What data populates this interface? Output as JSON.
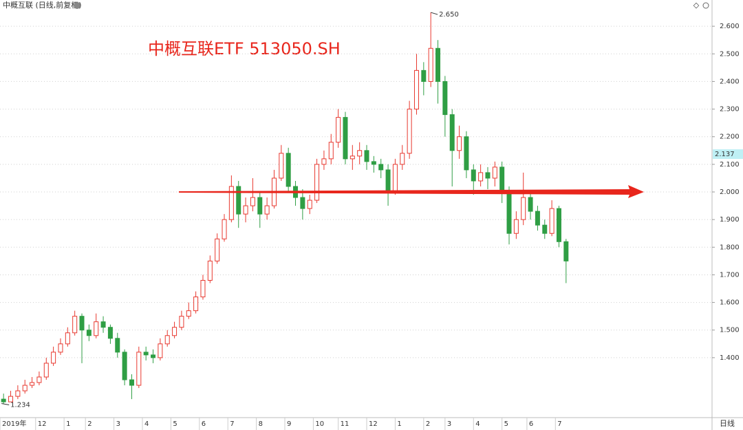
{
  "chart_data": {
    "type": "candlestick",
    "title": "中概互联 (日线,前复权)",
    "annotation": "中概互联ETF 513050.SH",
    "period_label": "日线",
    "high_label": "2.650",
    "low_label": "1.234",
    "cursor_price": 2.137,
    "reference_level": 2.0,
    "reference_color": "#e8261c",
    "up_color": "#e8372e",
    "down_color": "#2f9e44",
    "grid": true,
    "xlim": [
      0,
      100
    ],
    "xticks": [
      {
        "value": 0,
        "label": "2019年"
      },
      {
        "value": 5,
        "label": "12"
      },
      {
        "value": 9,
        "label": "1"
      },
      {
        "value": 12,
        "label": "2"
      },
      {
        "value": 16,
        "label": "3"
      },
      {
        "value": 20,
        "label": "4"
      },
      {
        "value": 24,
        "label": "5"
      },
      {
        "value": 28,
        "label": "6"
      },
      {
        "value": 32,
        "label": "7"
      },
      {
        "value": 36,
        "label": "8"
      },
      {
        "value": 40,
        "label": "9"
      },
      {
        "value": 44,
        "label": "10"
      },
      {
        "value": 47.5,
        "label": "11"
      },
      {
        "value": 51.5,
        "label": "12"
      },
      {
        "value": 55.5,
        "label": "1"
      },
      {
        "value": 59.5,
        "label": "2"
      },
      {
        "value": 62.5,
        "label": "3"
      },
      {
        "value": 66.5,
        "label": "4"
      },
      {
        "value": 70.5,
        "label": "5"
      },
      {
        "value": 74,
        "label": "6"
      },
      {
        "value": 78,
        "label": "7"
      }
    ],
    "ylim": [
      1.183,
      2.695
    ],
    "yticks": [
      {
        "value": 1.4,
        "label": "1.400"
      },
      {
        "value": 1.5,
        "label": "1.500"
      },
      {
        "value": 1.6,
        "label": "1.600"
      },
      {
        "value": 1.7,
        "label": "1.700"
      },
      {
        "value": 1.8,
        "label": "1.800"
      },
      {
        "value": 1.9,
        "label": "1.900"
      },
      {
        "value": 2.0,
        "label": "2.000"
      },
      {
        "value": 2.1,
        "label": "2.100"
      },
      {
        "value": 2.2,
        "label": "2.200"
      },
      {
        "value": 2.3,
        "label": "2.300"
      },
      {
        "value": 2.4,
        "label": "2.400"
      },
      {
        "value": 2.5,
        "label": "2.500"
      },
      {
        "value": 2.6,
        "label": "2.600"
      }
    ],
    "open": [
      1.25,
      1.24,
      1.26,
      1.28,
      1.3,
      1.31,
      1.33,
      1.38,
      1.42,
      1.45,
      1.49,
      1.55,
      1.5,
      1.48,
      1.53,
      1.51,
      1.47,
      1.42,
      1.32,
      1.3,
      1.42,
      1.41,
      1.4,
      1.45,
      1.48,
      1.51,
      1.55,
      1.57,
      1.62,
      1.68,
      1.75,
      1.83,
      1.9,
      2.02,
      1.92,
      1.95,
      1.98,
      1.92,
      1.95,
      2.05,
      2.14,
      2.02,
      1.98,
      1.94,
      1.97,
      2.1,
      2.12,
      2.18,
      2.27,
      2.12,
      2.13,
      2.15,
      2.11,
      2.1,
      2.08,
      2.0,
      2.1,
      2.14,
      2.3,
      2.44,
      2.4,
      2.52,
      2.4,
      2.28,
      2.15,
      2.2,
      2.08,
      2.04,
      2.07,
      2.05,
      2.09,
      2.0,
      1.85,
      1.9,
      1.98,
      1.93,
      1.88,
      1.85,
      1.94,
      1.82
    ],
    "close": [
      1.24,
      1.26,
      1.28,
      1.3,
      1.31,
      1.33,
      1.38,
      1.42,
      1.45,
      1.49,
      1.55,
      1.5,
      1.48,
      1.53,
      1.51,
      1.47,
      1.42,
      1.32,
      1.3,
      1.42,
      1.41,
      1.4,
      1.45,
      1.48,
      1.51,
      1.55,
      1.57,
      1.62,
      1.68,
      1.75,
      1.83,
      1.9,
      2.02,
      1.92,
      1.95,
      1.98,
      1.92,
      1.95,
      2.05,
      2.14,
      2.02,
      1.98,
      1.94,
      1.97,
      2.1,
      2.12,
      2.18,
      2.27,
      2.12,
      2.13,
      2.15,
      2.11,
      2.1,
      2.08,
      2.0,
      2.1,
      2.14,
      2.3,
      2.44,
      2.4,
      2.52,
      2.4,
      2.28,
      2.15,
      2.2,
      2.08,
      2.04,
      2.07,
      2.05,
      2.09,
      2.0,
      1.85,
      1.9,
      1.98,
      1.93,
      1.88,
      1.85,
      1.94,
      1.82,
      1.75
    ],
    "high": [
      1.27,
      1.28,
      1.3,
      1.32,
      1.33,
      1.35,
      1.4,
      1.44,
      1.47,
      1.51,
      1.57,
      1.56,
      1.52,
      1.56,
      1.55,
      1.52,
      1.49,
      1.43,
      1.34,
      1.44,
      1.44,
      1.43,
      1.47,
      1.5,
      1.53,
      1.57,
      1.6,
      1.64,
      1.7,
      1.77,
      1.85,
      1.92,
      2.06,
      2.04,
      1.98,
      2.05,
      2.0,
      1.98,
      2.08,
      2.17,
      2.16,
      2.04,
      2.01,
      1.99,
      2.12,
      2.15,
      2.21,
      2.3,
      2.29,
      2.17,
      2.18,
      2.17,
      2.13,
      2.12,
      2.1,
      2.12,
      2.17,
      2.33,
      2.5,
      2.47,
      2.65,
      2.55,
      2.42,
      2.3,
      2.24,
      2.22,
      2.1,
      2.1,
      2.09,
      2.11,
      2.11,
      2.02,
      1.93,
      2.07,
      2.0,
      1.95,
      1.9,
      1.97,
      1.95,
      1.83
    ],
    "low": [
      1.234,
      1.24,
      1.25,
      1.27,
      1.29,
      1.3,
      1.32,
      1.37,
      1.41,
      1.44,
      1.48,
      1.38,
      1.46,
      1.47,
      1.49,
      1.45,
      1.4,
      1.3,
      1.25,
      1.29,
      1.39,
      1.38,
      1.39,
      1.44,
      1.47,
      1.5,
      1.54,
      1.56,
      1.61,
      1.67,
      1.74,
      1.82,
      1.89,
      1.87,
      1.89,
      1.93,
      1.87,
      1.9,
      1.94,
      2.04,
      2.0,
      1.95,
      1.9,
      1.92,
      1.96,
      2.08,
      2.1,
      2.16,
      2.1,
      2.08,
      2.1,
      2.08,
      2.07,
      2.05,
      1.95,
      1.99,
      2.08,
      2.12,
      2.28,
      2.35,
      2.38,
      2.32,
      2.2,
      2.02,
      2.12,
      2.05,
      1.99,
      2.02,
      2.01,
      2.02,
      1.96,
      1.81,
      1.83,
      1.88,
      1.9,
      1.86,
      1.83,
      1.84,
      1.8,
      1.67
    ]
  }
}
